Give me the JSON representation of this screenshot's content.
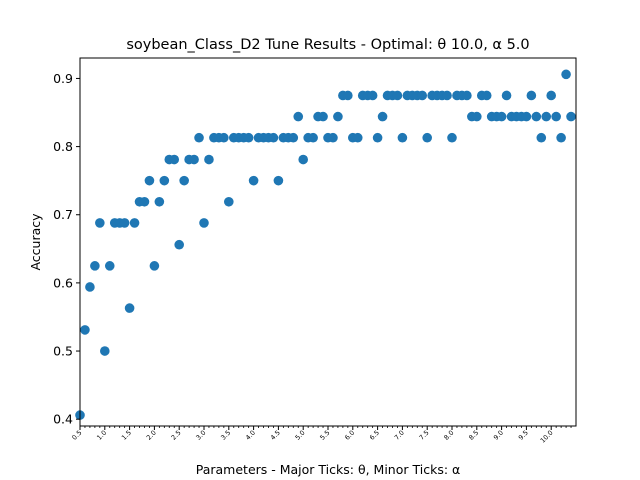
{
  "chart_data": {
    "type": "scatter",
    "title": "soybean_Class_D2 Tune Results - Optimal: θ 10.0, α 5.0",
    "xlabel": "Parameters - Major Ticks: θ, Minor Ticks: α",
    "ylabel": "Accuracy",
    "marker_color": "#1f77b4",
    "xlim": [
      0.5,
      10.5
    ],
    "ylim": [
      0.39,
      0.93
    ],
    "grid": false,
    "legend": "none",
    "x_tick_labels": [
      "0.5",
      "1.0",
      "1.5",
      "2.0",
      "2.5",
      "3.0",
      "3.5",
      "4.0",
      "4.5",
      "5.0",
      "5.5",
      "6.0",
      "6.5",
      "7.0",
      "7.5",
      "8.0",
      "8.5",
      "9.0",
      "9.5",
      "10.0"
    ],
    "y_tick_labels": [
      "0.4",
      "0.5",
      "0.6",
      "0.7",
      "0.8",
      "0.9"
    ],
    "x_tick_values": [
      0.5,
      1.0,
      1.5,
      2.0,
      2.5,
      3.0,
      3.5,
      4.0,
      4.5,
      5.0,
      5.5,
      6.0,
      6.5,
      7.0,
      7.5,
      8.0,
      8.5,
      9.0,
      9.5,
      10.0
    ],
    "y_tick_values": [
      0.4,
      0.5,
      0.6,
      0.7,
      0.8,
      0.9
    ],
    "points": [
      [
        0.5,
        0.406
      ],
      [
        0.6,
        0.531
      ],
      [
        0.7,
        0.594
      ],
      [
        0.8,
        0.625
      ],
      [
        0.9,
        0.688
      ],
      [
        1.0,
        0.5
      ],
      [
        1.1,
        0.625
      ],
      [
        1.2,
        0.688
      ],
      [
        1.3,
        0.688
      ],
      [
        1.4,
        0.688
      ],
      [
        1.5,
        0.563
      ],
      [
        1.6,
        0.688
      ],
      [
        1.7,
        0.719
      ],
      [
        1.8,
        0.719
      ],
      [
        1.9,
        0.75
      ],
      [
        2.0,
        0.625
      ],
      [
        2.1,
        0.719
      ],
      [
        2.2,
        0.75
      ],
      [
        2.3,
        0.781
      ],
      [
        2.4,
        0.781
      ],
      [
        2.5,
        0.656
      ],
      [
        2.6,
        0.75
      ],
      [
        2.7,
        0.781
      ],
      [
        2.8,
        0.781
      ],
      [
        2.9,
        0.813
      ],
      [
        3.0,
        0.688
      ],
      [
        3.1,
        0.781
      ],
      [
        3.2,
        0.813
      ],
      [
        3.3,
        0.813
      ],
      [
        3.4,
        0.813
      ],
      [
        3.5,
        0.719
      ],
      [
        3.6,
        0.813
      ],
      [
        3.7,
        0.813
      ],
      [
        3.8,
        0.813
      ],
      [
        3.9,
        0.813
      ],
      [
        4.0,
        0.75
      ],
      [
        4.1,
        0.813
      ],
      [
        4.2,
        0.813
      ],
      [
        4.3,
        0.813
      ],
      [
        4.4,
        0.813
      ],
      [
        4.5,
        0.75
      ],
      [
        4.6,
        0.813
      ],
      [
        4.7,
        0.813
      ],
      [
        4.8,
        0.813
      ],
      [
        4.9,
        0.844
      ],
      [
        5.0,
        0.781
      ],
      [
        5.1,
        0.813
      ],
      [
        5.2,
        0.813
      ],
      [
        5.3,
        0.844
      ],
      [
        5.4,
        0.844
      ],
      [
        5.5,
        0.813
      ],
      [
        5.6,
        0.813
      ],
      [
        5.7,
        0.844
      ],
      [
        5.8,
        0.875
      ],
      [
        5.9,
        0.875
      ],
      [
        6.0,
        0.813
      ],
      [
        6.1,
        0.813
      ],
      [
        6.2,
        0.875
      ],
      [
        6.3,
        0.875
      ],
      [
        6.4,
        0.875
      ],
      [
        6.5,
        0.813
      ],
      [
        6.6,
        0.844
      ],
      [
        6.7,
        0.875
      ],
      [
        6.8,
        0.875
      ],
      [
        6.9,
        0.875
      ],
      [
        7.0,
        0.813
      ],
      [
        7.1,
        0.875
      ],
      [
        7.2,
        0.875
      ],
      [
        7.3,
        0.875
      ],
      [
        7.4,
        0.875
      ],
      [
        7.5,
        0.813
      ],
      [
        7.6,
        0.875
      ],
      [
        7.7,
        0.875
      ],
      [
        7.8,
        0.875
      ],
      [
        7.9,
        0.875
      ],
      [
        8.0,
        0.813
      ],
      [
        8.1,
        0.875
      ],
      [
        8.2,
        0.875
      ],
      [
        8.3,
        0.875
      ],
      [
        8.4,
        0.844
      ],
      [
        8.5,
        0.844
      ],
      [
        8.6,
        0.875
      ],
      [
        8.7,
        0.875
      ],
      [
        8.8,
        0.844
      ],
      [
        8.9,
        0.844
      ],
      [
        9.0,
        0.844
      ],
      [
        9.1,
        0.875
      ],
      [
        9.2,
        0.844
      ],
      [
        9.3,
        0.844
      ],
      [
        9.4,
        0.844
      ],
      [
        9.5,
        0.844
      ],
      [
        9.6,
        0.875
      ],
      [
        9.7,
        0.844
      ],
      [
        9.8,
        0.813
      ],
      [
        9.9,
        0.844
      ],
      [
        10.0,
        0.875
      ],
      [
        10.1,
        0.844
      ],
      [
        10.2,
        0.813
      ],
      [
        10.3,
        0.906
      ],
      [
        10.4,
        0.844
      ]
    ]
  }
}
